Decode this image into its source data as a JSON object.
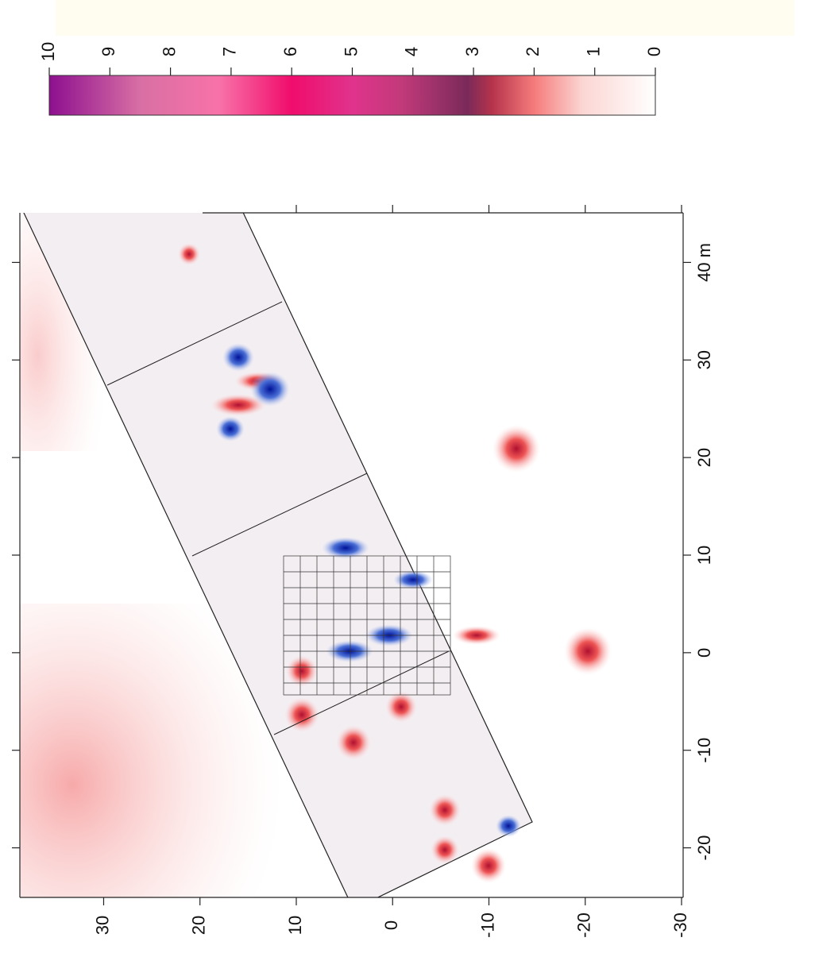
{
  "chart_data": {
    "type": "map",
    "xlim": [
      -25,
      45
    ],
    "xticks": [
      -20,
      -10,
      0,
      10,
      20,
      30,
      {
        "value": 40,
        "label": "40 m"
      }
    ],
    "ylim": [
      -30,
      38.7
    ],
    "yticks": [
      -30,
      -20,
      -10,
      0,
      10,
      20,
      30
    ],
    "colorbar": {
      "lim": [
        0,
        10
      ],
      "ticks": [
        0,
        1,
        2,
        3,
        4,
        5,
        6,
        7,
        8,
        9,
        10
      ]
    }
  }
}
